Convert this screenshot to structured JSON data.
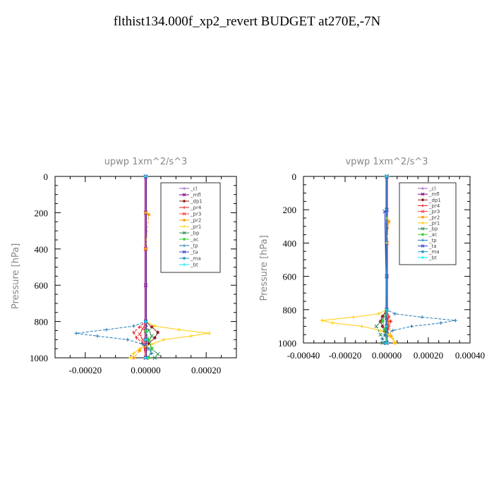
{
  "title": "flthist134.000f_xp2_revert  BUDGET at270E,-7N",
  "chart_data": [
    {
      "type": "line",
      "title": "upwp   1xm^2/s^3",
      "ylabel": "Pressure [hPa]",
      "xlim": [
        -0.0003,
        0.0003
      ],
      "ylim": [
        1000,
        0
      ],
      "xticks": [
        -0.0002,
        0,
        0.0002
      ],
      "xtick_labels": [
        "-0.00020",
        "0.00000",
        "0.00020"
      ],
      "yticks": [
        0,
        200,
        400,
        600,
        800,
        1000
      ],
      "ytick_labels": [
        "0",
        "200",
        "400",
        "600",
        "800",
        "1000"
      ],
      "legend": "top-right",
      "grid": false,
      "series": [
        {
          "name": "_cl",
          "color": "#9b59b6",
          "y": [
            0,
            200,
            400,
            600,
            800,
            850,
            900,
            950,
            1000
          ],
          "x": [
            0,
            0,
            0,
            0,
            0,
            0,
            0,
            0,
            0
          ]
        },
        {
          "name": "_mfl",
          "color": "#800080",
          "y": [
            0,
            200,
            400,
            600,
            800,
            850,
            900,
            950,
            1000
          ],
          "x": [
            0,
            0,
            0,
            0,
            0,
            0,
            0,
            0,
            0
          ]
        },
        {
          "name": "_dp1",
          "color": "#8b1a1a",
          "y": [
            0,
            400,
            800,
            830,
            860,
            890,
            920,
            950,
            1000
          ],
          "x": [
            0,
            0,
            0,
            2e-05,
            4e-05,
            3e-05,
            1e-05,
            0,
            0
          ]
        },
        {
          "name": "_pr4",
          "color": "#e31a1c",
          "y": [
            0,
            400,
            800,
            830,
            860,
            890,
            920,
            950,
            1000
          ],
          "x": [
            0,
            0,
            0,
            -2e-05,
            -4e-05,
            -3e-05,
            -1e-05,
            0,
            0
          ]
        },
        {
          "name": "_pr3",
          "color": "#ff4040",
          "y": [
            0,
            400,
            800,
            840,
            870,
            900,
            1000
          ],
          "x": [
            0,
            0,
            0,
            -1e-05,
            -2e-05,
            -1e-05,
            0
          ]
        },
        {
          "name": "_pr2",
          "color": "#ff9900",
          "y": [
            0,
            200,
            210,
            400,
            800,
            900,
            960,
            1000
          ],
          "x": [
            0,
            0,
            1e-05,
            0,
            0,
            0,
            -2e-05,
            -4e-05
          ]
        },
        {
          "name": "_pr1",
          "color": "#ffcc00",
          "y": [
            0,
            800,
            825,
            845,
            865,
            880,
            900,
            925,
            950,
            975,
            1000
          ],
          "x": [
            0,
            0,
            3e-05,
            0.00011,
            0.00021,
            0.00015,
            6e-05,
            2e-05,
            -2e-05,
            -4e-05,
            -5e-05
          ]
        },
        {
          "name": "_bp",
          "color": "#2e8b57",
          "y": [
            0,
            800,
            850,
            880,
            910,
            950,
            980,
            1000
          ],
          "x": [
            0,
            0,
            1e-05,
            2e-05,
            1e-05,
            2e-05,
            4e-05,
            3e-05
          ]
        },
        {
          "name": "_ac",
          "color": "#33cc33",
          "y": [
            0,
            800,
            850,
            900,
            950,
            1000
          ],
          "x": [
            0,
            0,
            0,
            1e-05,
            2e-05,
            1e-05
          ]
        },
        {
          "name": "_tp",
          "color": "#1f78b4",
          "y": [
            0,
            800,
            825,
            845,
            865,
            880,
            900,
            925,
            950,
            975,
            1000
          ],
          "x": [
            0,
            0,
            -4e-05,
            -0.00013,
            -0.00023,
            -0.00016,
            -6e-05,
            -1e-05,
            1e-05,
            2e-05,
            0
          ]
        },
        {
          "name": "_ta",
          "color": "#3344cc",
          "y": [
            0,
            800,
            900,
            1000
          ],
          "x": [
            0,
            0,
            0,
            0
          ]
        },
        {
          "name": "_ma",
          "color": "#1e90c8",
          "y": [
            0,
            800,
            900,
            1000
          ],
          "x": [
            0,
            0,
            0,
            0
          ]
        },
        {
          "name": "_bt",
          "color": "#00e5ee",
          "y": [
            0,
            800,
            900,
            1000
          ],
          "x": [
            0,
            0,
            0,
            0
          ]
        }
      ]
    },
    {
      "type": "line",
      "title": "vpwp   1xm^2/s^3",
      "ylabel": "Pressure [hPa]",
      "xlim": [
        -0.0004,
        0.0004
      ],
      "ylim": [
        1000,
        0
      ],
      "xticks": [
        -0.0004,
        -0.0002,
        0,
        0.0002,
        0.0004
      ],
      "xtick_labels": [
        "-0.00040",
        "-0.00020",
        "0.00000",
        "0.00020",
        "0.00040"
      ],
      "yticks": [
        0,
        200,
        400,
        600,
        800,
        1000
      ],
      "ytick_labels": [
        "0",
        "200",
        "400",
        "600",
        "800",
        "1000"
      ],
      "legend": "top-right",
      "grid": false,
      "series": [
        {
          "name": "_cl",
          "color": "#9b59b6",
          "y": [
            0,
            200,
            400,
            600,
            800,
            850,
            900,
            950,
            1000
          ],
          "x": [
            0,
            0,
            0,
            0,
            0,
            0,
            0,
            0,
            0
          ]
        },
        {
          "name": "_mfl",
          "color": "#800080",
          "y": [
            0,
            200,
            400,
            600,
            800,
            850,
            900,
            950,
            1000
          ],
          "x": [
            0,
            0,
            0,
            0,
            0,
            0,
            0,
            0,
            0
          ]
        },
        {
          "name": "_dp1",
          "color": "#8b1a1a",
          "y": [
            0,
            400,
            800,
            840,
            870,
            900,
            930,
            1000
          ],
          "x": [
            0,
            0,
            0,
            -2e-05,
            -3e-05,
            -2e-05,
            -1e-05,
            0
          ]
        },
        {
          "name": "_pr4",
          "color": "#e31a1c",
          "y": [
            0,
            400,
            800,
            840,
            870,
            900,
            1000
          ],
          "x": [
            0,
            0,
            0,
            1e-05,
            2e-05,
            1e-05,
            0
          ]
        },
        {
          "name": "_pr3",
          "color": "#ff4040",
          "y": [
            0,
            400,
            800,
            870,
            1000
          ],
          "x": [
            0,
            0,
            0,
            1e-05,
            0
          ]
        },
        {
          "name": "_pr2",
          "color": "#ff9900",
          "y": [
            0,
            250,
            270,
            400,
            800,
            960,
            1000
          ],
          "x": [
            0,
            0,
            1e-05,
            0,
            0,
            2e-05,
            4e-05
          ]
        },
        {
          "name": "_pr1",
          "color": "#ffcc00",
          "y": [
            0,
            800,
            825,
            845,
            865,
            880,
            900,
            925,
            950,
            975,
            1000
          ],
          "x": [
            0,
            0,
            -4e-05,
            -0.00016,
            -0.00031,
            -0.00026,
            -0.00012,
            -3e-05,
            1e-05,
            3e-05,
            4e-05
          ]
        },
        {
          "name": "_bp",
          "color": "#2e8b57",
          "y": [
            0,
            800,
            860,
            900,
            950,
            1000
          ],
          "x": [
            0,
            0,
            -2e-05,
            -5e-05,
            -3e-05,
            -2e-05
          ]
        },
        {
          "name": "_ac",
          "color": "#33cc33",
          "y": [
            0,
            800,
            870,
            920,
            1000
          ],
          "x": [
            0,
            0,
            -2e-05,
            -1e-05,
            0
          ]
        },
        {
          "name": "_tp",
          "color": "#1f78b4",
          "y": [
            0,
            800,
            825,
            845,
            865,
            880,
            900,
            925,
            950,
            975,
            1000
          ],
          "x": [
            0,
            0,
            4e-05,
            0.00017,
            0.00033,
            0.00026,
            0.00012,
            3e-05,
            -1e-05,
            -2e-05,
            -1e-05
          ]
        },
        {
          "name": "_ta",
          "color": "#3344cc",
          "y": [
            0,
            200,
            210,
            800,
            1000
          ],
          "x": [
            0,
            0,
            -1e-05,
            0,
            0
          ]
        },
        {
          "name": "_ma",
          "color": "#1e90c8",
          "y": [
            0,
            800,
            900,
            1000
          ],
          "x": [
            0,
            0,
            0,
            0
          ]
        },
        {
          "name": "_bt",
          "color": "#00e5ee",
          "y": [
            0,
            800,
            900,
            1000
          ],
          "x": [
            0,
            0,
            0,
            0
          ]
        }
      ]
    }
  ]
}
